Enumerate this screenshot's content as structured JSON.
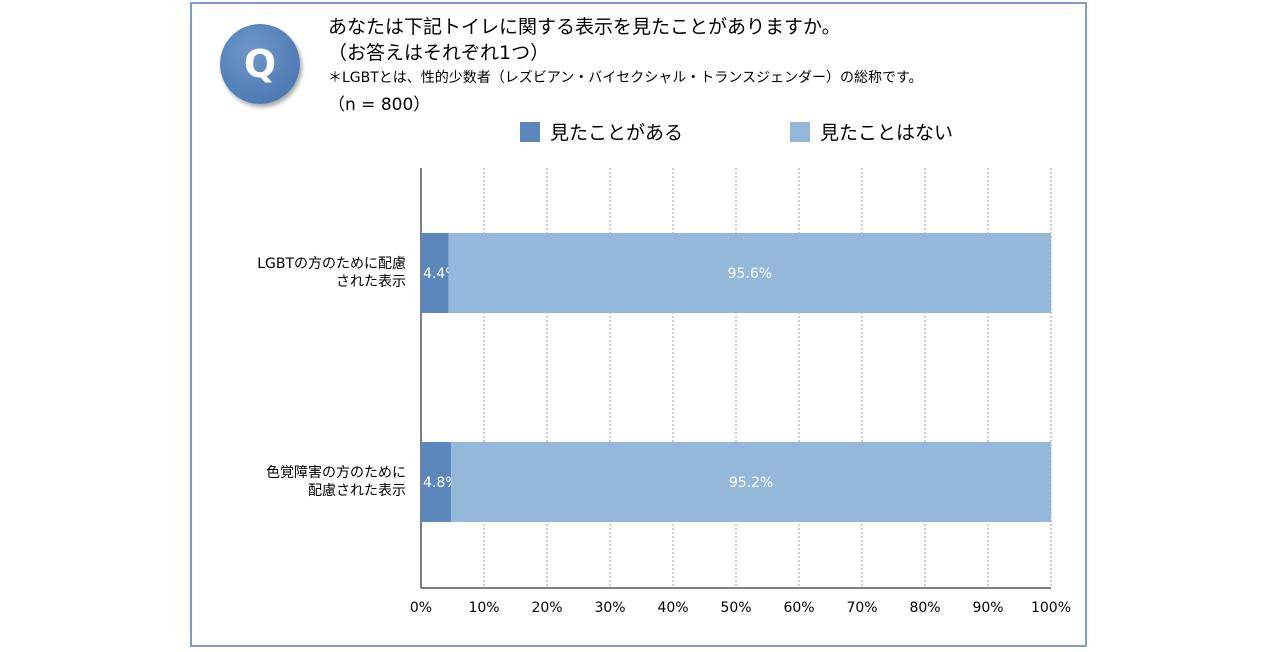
{
  "question": {
    "badge": "Q",
    "line1": "あなたは下記トイレに関する表示を見たことがありますか。",
    "line2": "（お答えはそれぞれ1つ）",
    "note": "＊LGBTとは、性的少数者（レズビアン・バイセクシャル・トランスジェンダー）の総称です。",
    "sample": "（n = 800）"
  },
  "colors": {
    "seen": "#5b87bd",
    "not_seen": "#95b8da",
    "frame": "#7d9cc6",
    "grid": "#999999"
  },
  "chart_data": {
    "type": "bar",
    "orientation": "horizontal",
    "stacked": true,
    "categories": [
      [
        "LGBTの方のために配慮",
        "された表示"
      ],
      [
        "色覚障害の方のために",
        "配慮された表示"
      ]
    ],
    "series": [
      {
        "name": "見たことがある",
        "values": [
          4.4,
          4.8
        ],
        "labels": [
          "4.4%",
          "4.8%"
        ]
      },
      {
        "name": "見たことはない",
        "values": [
          95.6,
          95.2
        ],
        "labels": [
          "95.6%",
          "95.2%"
        ]
      }
    ],
    "xlim": [
      0,
      100
    ],
    "x_ticks": [
      "0%",
      "10%",
      "20%",
      "30%",
      "40%",
      "50%",
      "60%",
      "70%",
      "80%",
      "90%",
      "100%"
    ],
    "grid": "vertical dashed",
    "legend": "top"
  }
}
